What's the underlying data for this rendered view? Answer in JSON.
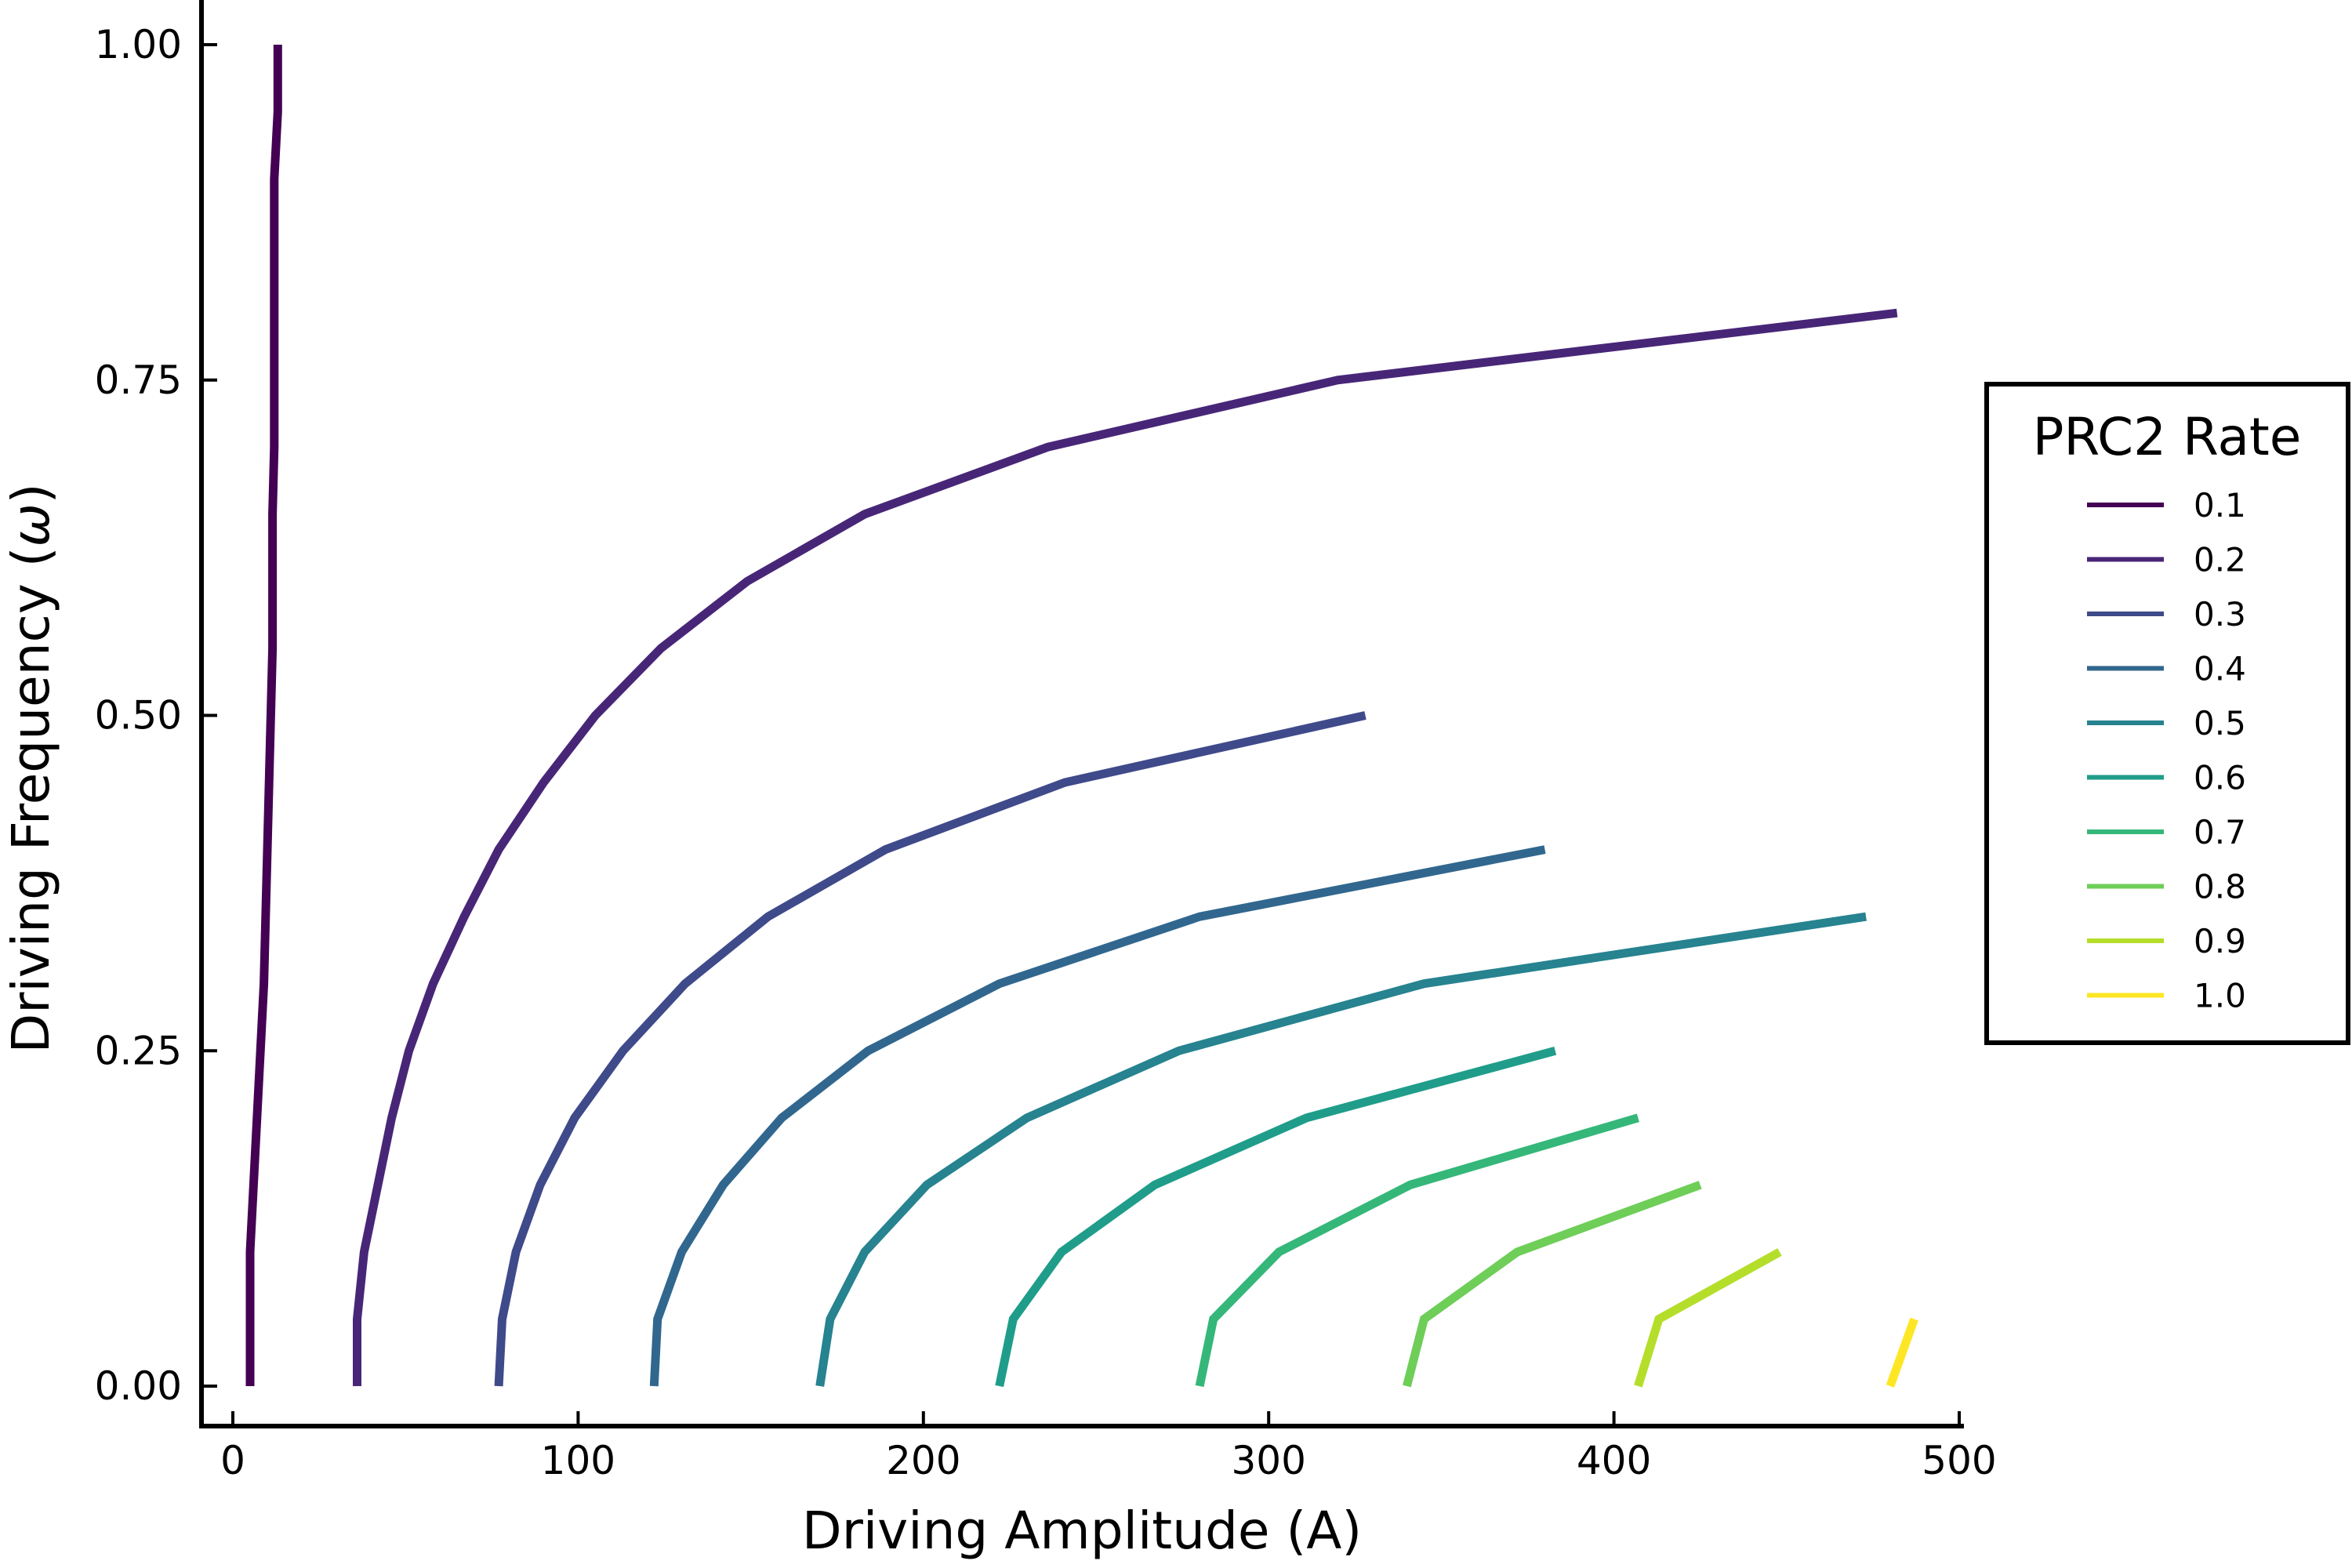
{
  "chart_data": {
    "type": "line",
    "title": "",
    "xlabel": "Driving Amplitude (A)",
    "ylabel_main": "Driving Frequency (",
    "ylabel_symbol": "ω",
    "ylabel_tail": ")",
    "xlim": [
      -10,
      500
    ],
    "ylim": [
      -0.03,
      1.03
    ],
    "x_ticks": [
      0,
      100,
      200,
      300,
      400,
      500
    ],
    "x_tick_labels": [
      "0",
      "100",
      "200",
      "300",
      "400",
      "500"
    ],
    "y_ticks": [
      0,
      0.25,
      0.5,
      0.75,
      1.0
    ],
    "y_tick_labels": [
      "0.00",
      "0.25",
      "0.50",
      "0.75",
      "1.00"
    ],
    "grid": false,
    "legend": {
      "title": "PRC2 Rate",
      "placement": "right"
    },
    "series": [
      {
        "name": "0.1",
        "color": "#440154",
        "points": [
          [
            5,
            0
          ],
          [
            5,
            0.1
          ],
          [
            6,
            0.15
          ],
          [
            7,
            0.2
          ],
          [
            8,
            0.25
          ],
          [
            9,
            0.3
          ],
          [
            9.5,
            0.35
          ],
          [
            10,
            0.4
          ],
          [
            10.5,
            0.45
          ],
          [
            11,
            0.5
          ],
          [
            11.5,
            0.55
          ],
          [
            11.5,
            0.6
          ],
          [
            11.5,
            0.65
          ],
          [
            12,
            0.7
          ],
          [
            12,
            0.75
          ],
          [
            12,
            0.8
          ],
          [
            12,
            0.85
          ],
          [
            12,
            0.9
          ],
          [
            13,
            0.95
          ],
          [
            13,
            1.0
          ]
        ]
      },
      {
        "name": "0.2",
        "color": "#482677",
        "points": [
          [
            36,
            0
          ],
          [
            36,
            0.05
          ],
          [
            38,
            0.1
          ],
          [
            42,
            0.15
          ],
          [
            46,
            0.2
          ],
          [
            51,
            0.25
          ],
          [
            58,
            0.3
          ],
          [
            67,
            0.35
          ],
          [
            77,
            0.4
          ],
          [
            90,
            0.45
          ],
          [
            105,
            0.5
          ],
          [
            124,
            0.55
          ],
          [
            149,
            0.6
          ],
          [
            183,
            0.65
          ],
          [
            236,
            0.7
          ],
          [
            320,
            0.75
          ],
          [
            482,
            0.8
          ]
        ]
      },
      {
        "name": "0.3",
        "color": "#3f4a8a",
        "points": [
          [
            77,
            0
          ],
          [
            78,
            0.05
          ],
          [
            82,
            0.1
          ],
          [
            89,
            0.15
          ],
          [
            99,
            0.2
          ],
          [
            113,
            0.25
          ],
          [
            131,
            0.3
          ],
          [
            155,
            0.35
          ],
          [
            189,
            0.4
          ],
          [
            241,
            0.45
          ],
          [
            328,
            0.5
          ]
        ]
      },
      {
        "name": "0.4",
        "color": "#31678e",
        "points": [
          [
            122,
            0
          ],
          [
            123,
            0.05
          ],
          [
            130,
            0.1
          ],
          [
            142,
            0.15
          ],
          [
            159,
            0.2
          ],
          [
            184,
            0.25
          ],
          [
            222,
            0.3
          ],
          [
            280,
            0.35
          ],
          [
            380,
            0.4
          ]
        ]
      },
      {
        "name": "0.5",
        "color": "#26838f",
        "points": [
          [
            170,
            0
          ],
          [
            173,
            0.05
          ],
          [
            183,
            0.1
          ],
          [
            201,
            0.15
          ],
          [
            230,
            0.2
          ],
          [
            274,
            0.25
          ],
          [
            345,
            0.3
          ],
          [
            473,
            0.35
          ]
        ]
      },
      {
        "name": "0.6",
        "color": "#1f9d8a",
        "points": [
          [
            222,
            0
          ],
          [
            226,
            0.05
          ],
          [
            240,
            0.1
          ],
          [
            267,
            0.15
          ],
          [
            311,
            0.2
          ],
          [
            383,
            0.25
          ]
        ]
      },
      {
        "name": "0.7",
        "color": "#35b779",
        "points": [
          [
            280,
            0
          ],
          [
            284,
            0.05
          ],
          [
            303,
            0.1
          ],
          [
            341,
            0.15
          ],
          [
            407,
            0.2
          ]
        ]
      },
      {
        "name": "0.8",
        "color": "#6ece58",
        "points": [
          [
            340,
            0
          ],
          [
            345,
            0.05
          ],
          [
            372,
            0.1
          ],
          [
            425,
            0.15
          ]
        ]
      },
      {
        "name": "0.9",
        "color": "#b5de2b",
        "points": [
          [
            407,
            0
          ],
          [
            413,
            0.05
          ],
          [
            448,
            0.1
          ]
        ]
      },
      {
        "name": "1.0",
        "color": "#fde725",
        "points": [
          [
            480,
            0
          ],
          [
            487,
            0.05
          ]
        ]
      }
    ]
  }
}
